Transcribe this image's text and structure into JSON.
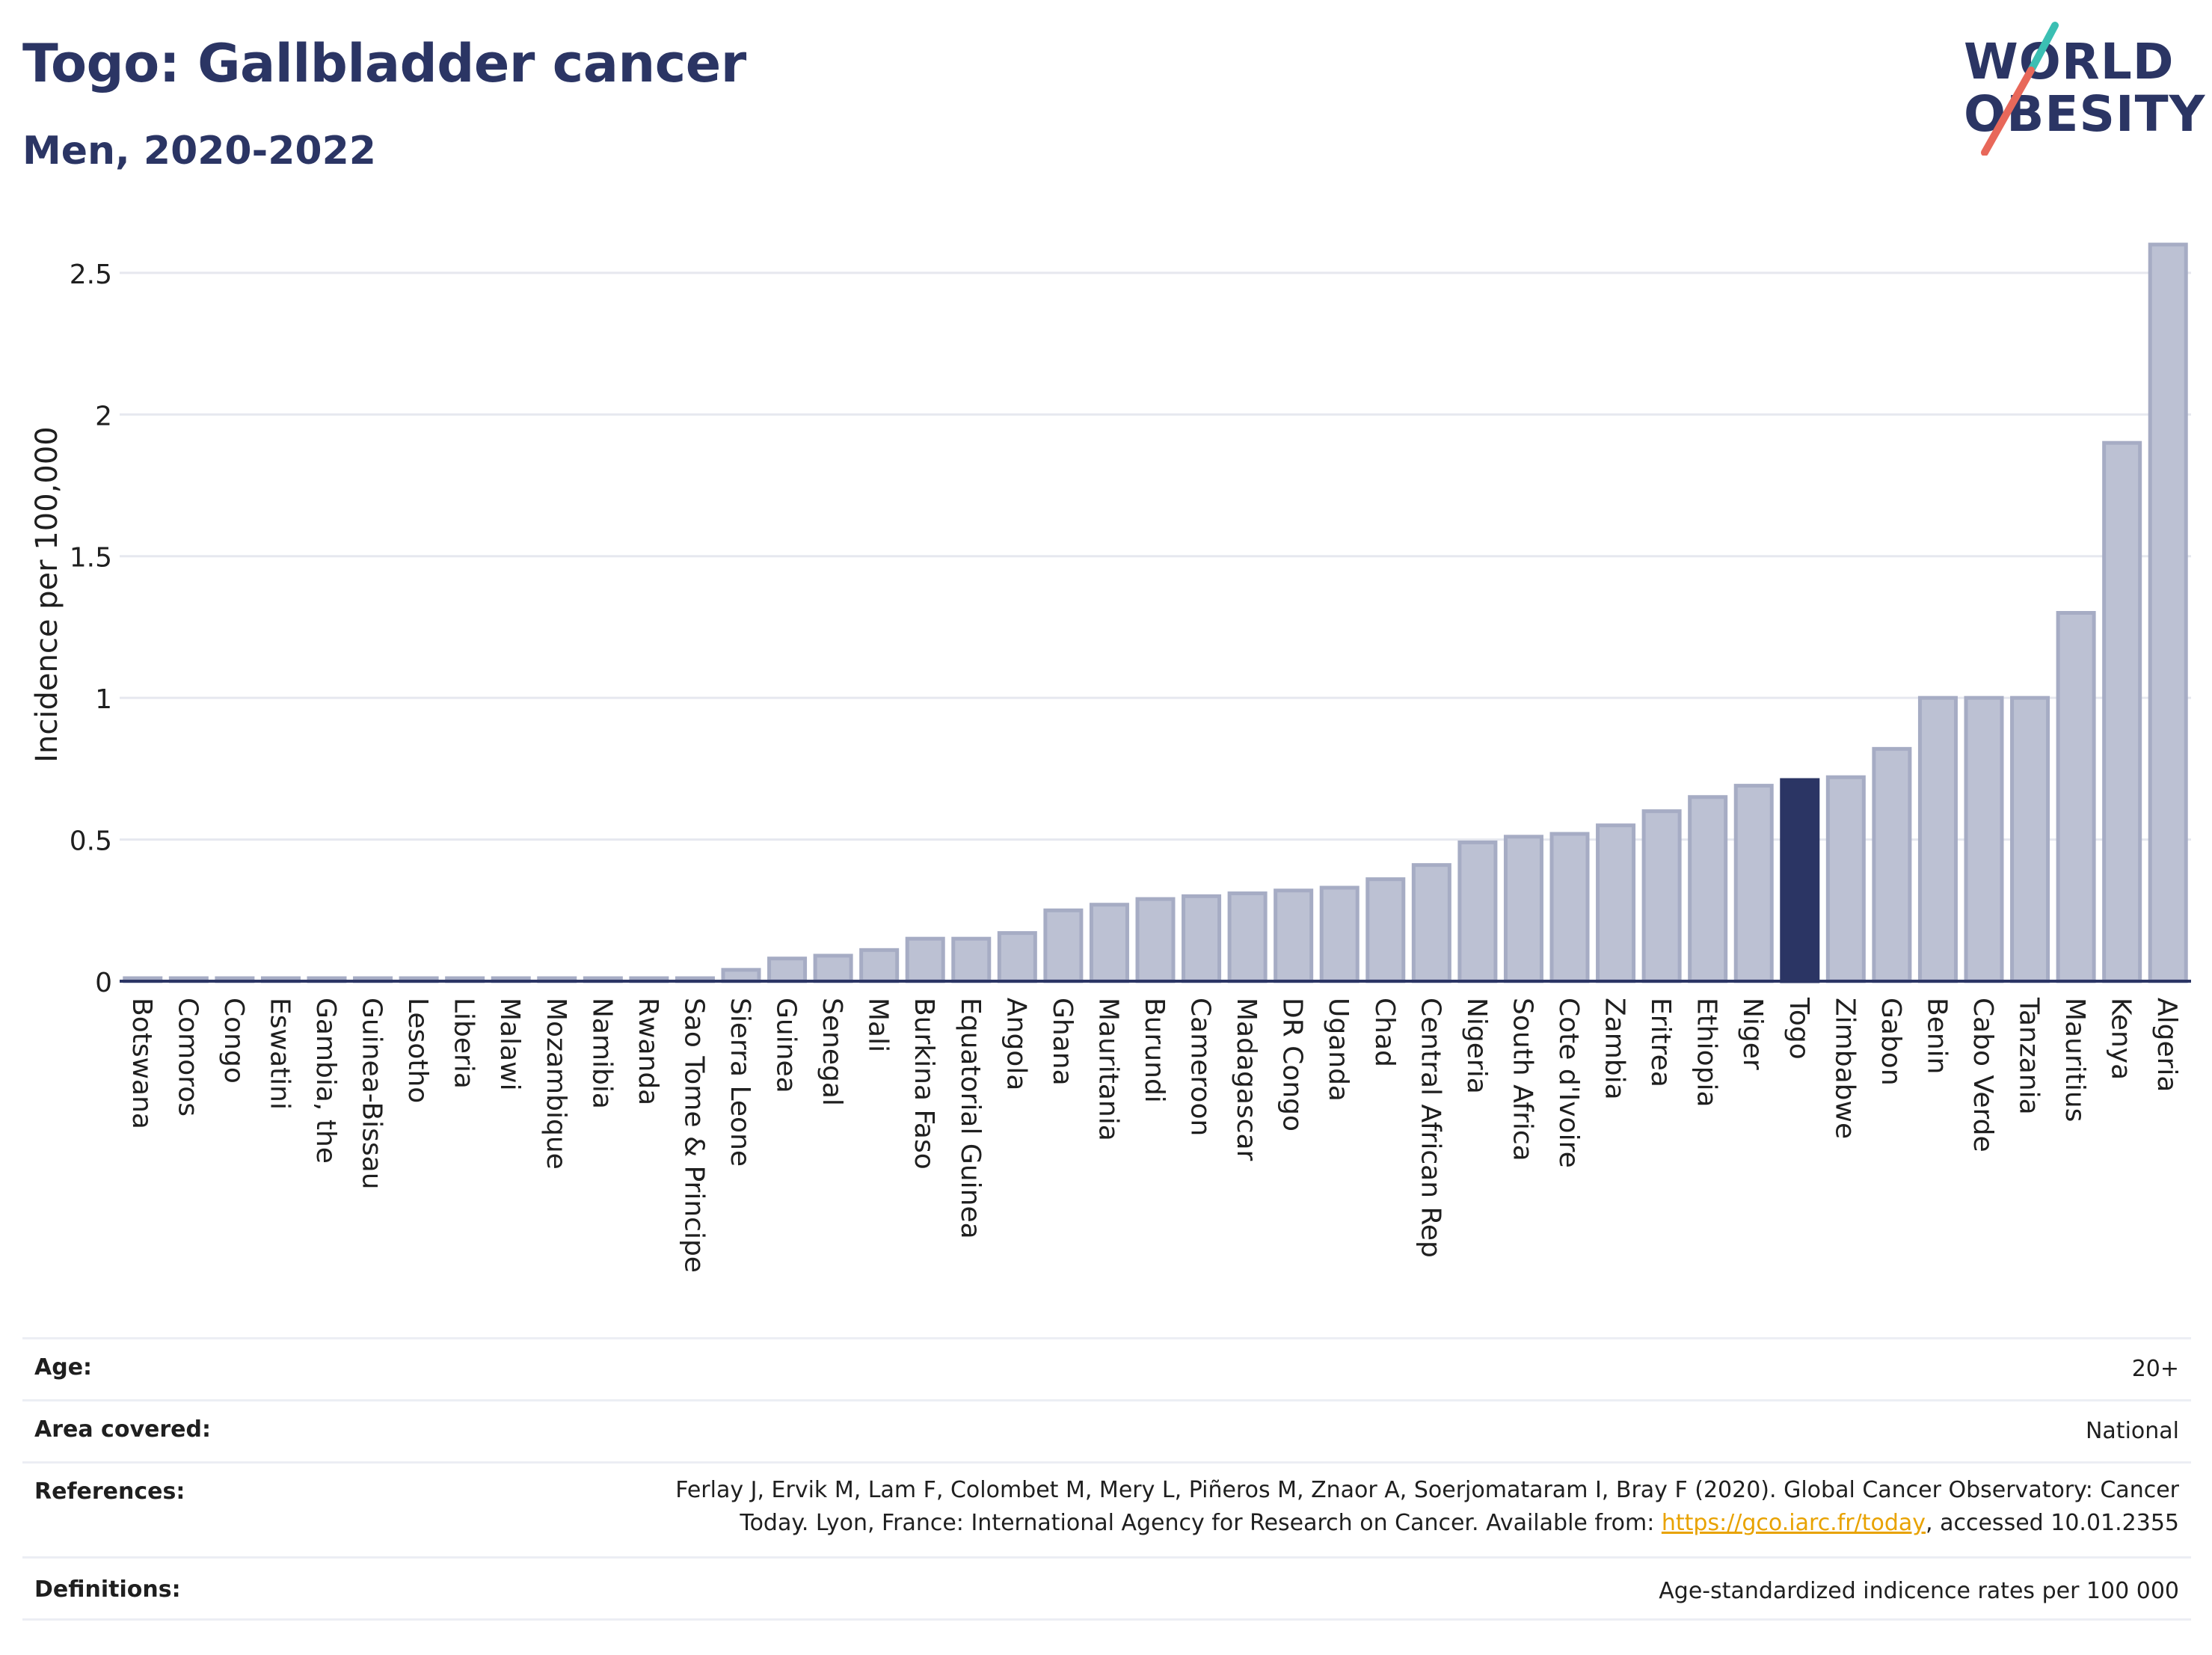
{
  "header": {
    "title": "Togo: Gallbladder cancer",
    "subtitle": "Men, 2020-2022"
  },
  "logo": {
    "line1": "WORLD",
    "line2": "OBESITY",
    "accent_teal": "#3bbfb3",
    "accent_coral": "#e8685a"
  },
  "colors": {
    "bar": "#bcc1d3",
    "bar_border": "#a6acc4",
    "highlight": "#2b3564",
    "axis": "#2b3564",
    "grid": "#e6e8ef"
  },
  "chart_data": {
    "type": "bar",
    "ylabel": "Incidence per 100,000",
    "xlabel": "",
    "ylim": [
      0,
      2.6
    ],
    "yticks": [
      0,
      0.5,
      1,
      1.5,
      2,
      2.5
    ],
    "ytick_labels": [
      "0",
      "0.5",
      "1",
      "1.5",
      "2",
      "2.5"
    ],
    "grid": true,
    "highlight": "Togo",
    "categories": [
      "Botswana",
      "Comoros",
      "Congo",
      "Eswatini",
      "Gambia, the",
      "Guinea-Bissau",
      "Lesotho",
      "Liberia",
      "Malawi",
      "Mozambique",
      "Namibia",
      "Rwanda",
      "Sao Tome & Principe",
      "Sierra Leone",
      "Guinea",
      "Senegal",
      "Mali",
      "Burkina Faso",
      "Equatorial Guinea",
      "Angola",
      "Ghana",
      "Mauritania",
      "Burundi",
      "Cameroon",
      "Madagascar",
      "DR Congo",
      "Uganda",
      "Chad",
      "Central African Rep",
      "Nigeria",
      "South Africa",
      "Cote d'Ivoire",
      "Zambia",
      "Eritrea",
      "Ethiopia",
      "Niger",
      "Togo",
      "Zimbabwe",
      "Gabon",
      "Benin",
      "Cabo Verde",
      "Tanzania",
      "Mauritius",
      "Kenya",
      "Algeria"
    ],
    "values": [
      0.01,
      0.01,
      0.01,
      0.01,
      0.01,
      0.01,
      0.01,
      0.01,
      0.01,
      0.01,
      0.01,
      0.01,
      0.01,
      0.04,
      0.08,
      0.09,
      0.11,
      0.15,
      0.15,
      0.17,
      0.25,
      0.27,
      0.29,
      0.3,
      0.31,
      0.32,
      0.33,
      0.36,
      0.41,
      0.49,
      0.51,
      0.52,
      0.55,
      0.6,
      0.65,
      0.69,
      0.71,
      0.72,
      0.82,
      1.0,
      1.0,
      1.0,
      1.3,
      1.9,
      2.6
    ]
  },
  "info": {
    "age_label": "Age:",
    "age_value": "20+",
    "area_label": "Area covered:",
    "area_value": "National",
    "references_label": "References:",
    "references_line1": "Ferlay J, Ervik M, Lam F, Colombet M, Mery L, Piñeros M, Znaor A, Soerjomataram I, Bray F (2020). Global Cancer Observatory: Cancer",
    "references_line2_pre": "Today. Lyon, France: International Agency for Research on Cancer. Available from: ",
    "references_link": "https://gco.iarc.fr/today",
    "references_line2_post": ", accessed 10.01.2355",
    "definitions_label": "Definitions:",
    "definitions_value": "Age-standardized indicence rates per 100 000"
  }
}
